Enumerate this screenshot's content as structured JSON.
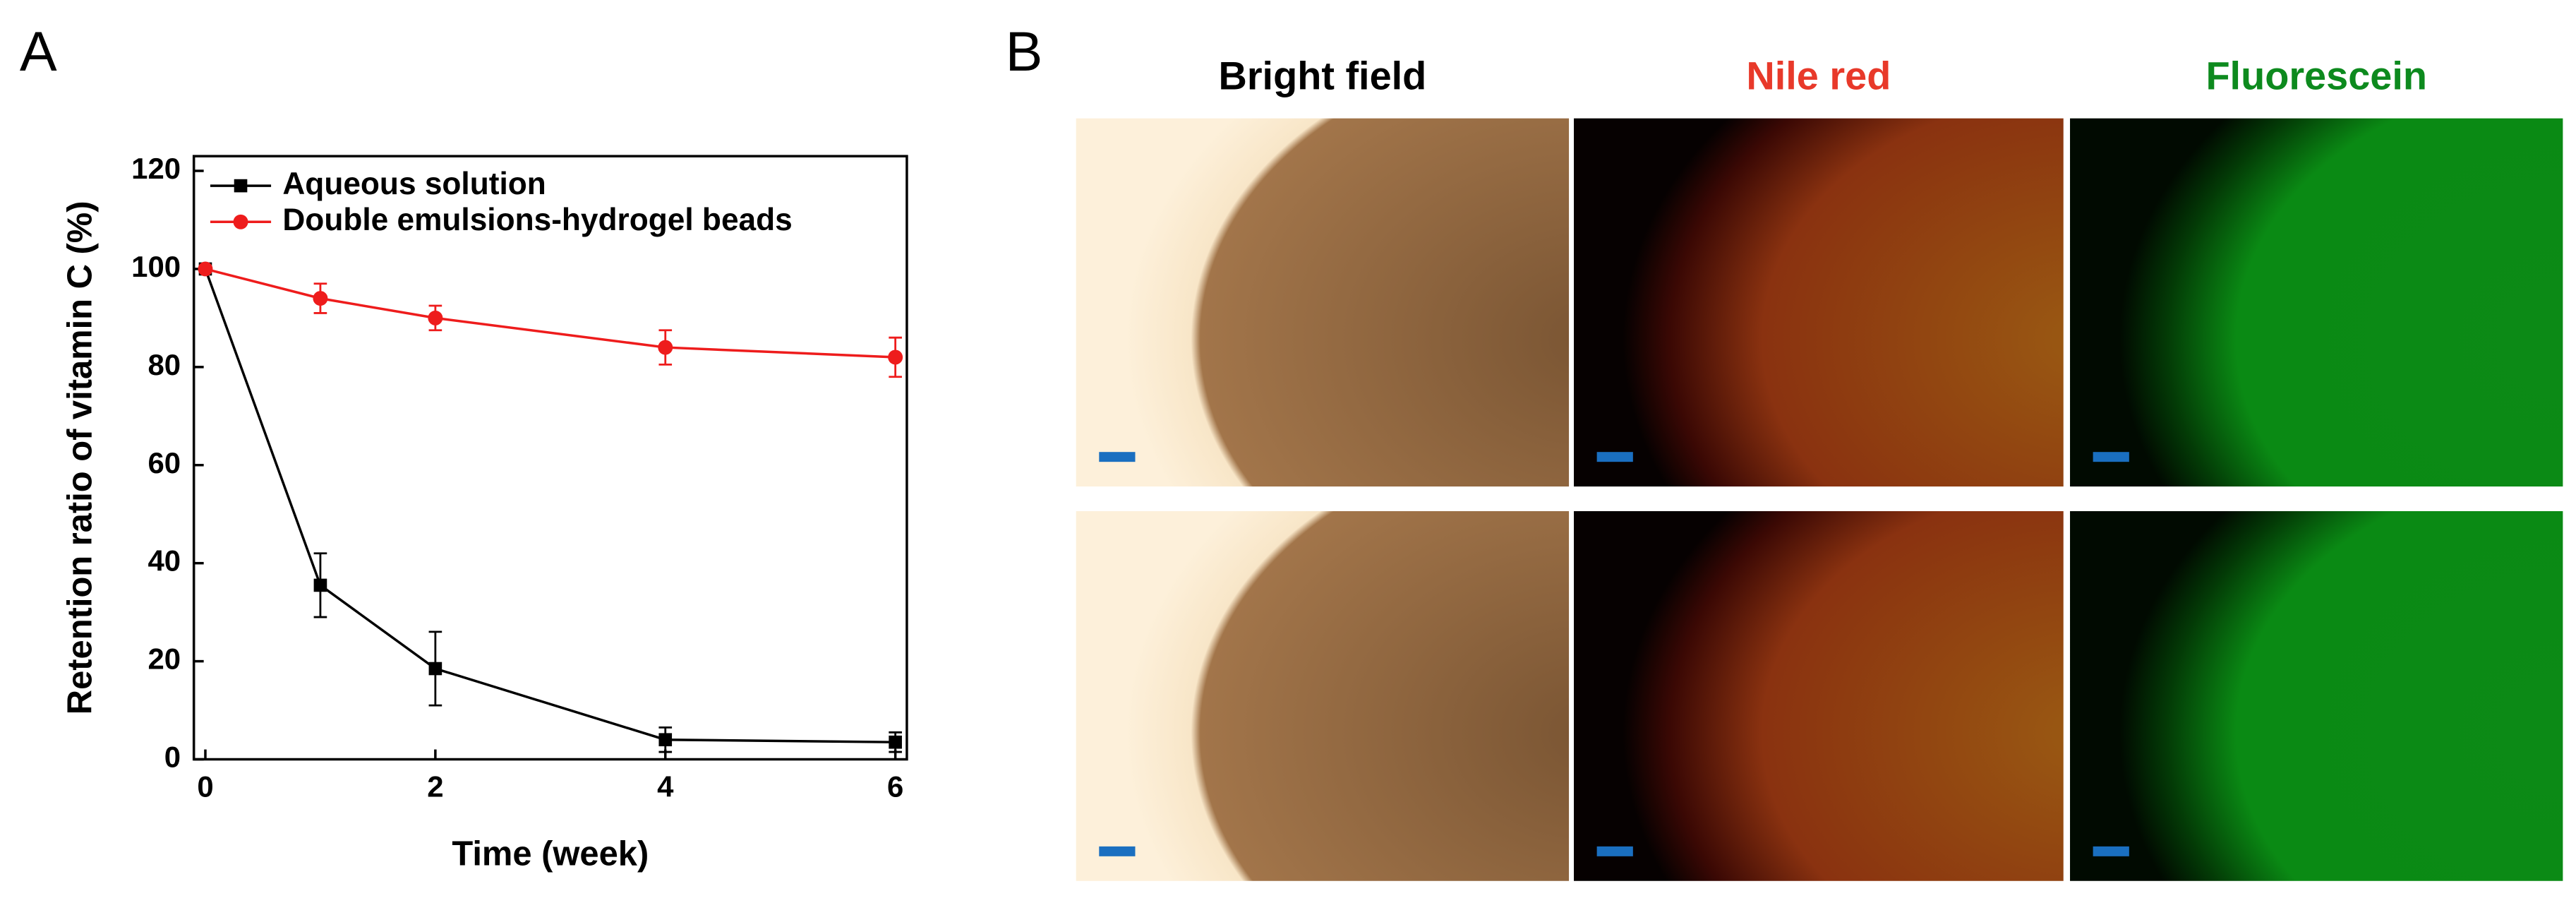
{
  "panel_labels": [
    "A",
    "B"
  ],
  "image_columns": [
    {
      "title": "Bright field",
      "color": "#000000"
    },
    {
      "title": "Nile red",
      "color": "#e8392a"
    },
    {
      "title": "Fluorescein",
      "color": "#0d8a1e"
    }
  ],
  "chart_data": {
    "type": "line",
    "x_label": "Time (week)",
    "y_label": "Retention ratio of vitamin C (%)",
    "x": [
      0,
      1,
      2,
      4,
      6
    ],
    "series": [
      {
        "name": "Aqueous solution",
        "color": "#000000",
        "marker": "square",
        "values": [
          100,
          35.5,
          18.5,
          4,
          3.5
        ],
        "errors": [
          0,
          6.5,
          7.5,
          2.5,
          2
        ]
      },
      {
        "name": "Double emulsions-hydrogel beads",
        "color": "#ee1c1c",
        "marker": "circle",
        "values": [
          100,
          94,
          90,
          84,
          82
        ],
        "errors": [
          0,
          3,
          2.5,
          3.5,
          4
        ]
      }
    ],
    "xlim": [
      -0.1,
      6.1
    ],
    "xticks": [
      0,
      2,
      4,
      6
    ],
    "ylim": [
      0,
      123
    ],
    "yticks": [
      0,
      20,
      40,
      60,
      80,
      100,
      120
    ],
    "legend": "upper-left",
    "grid": false
  }
}
